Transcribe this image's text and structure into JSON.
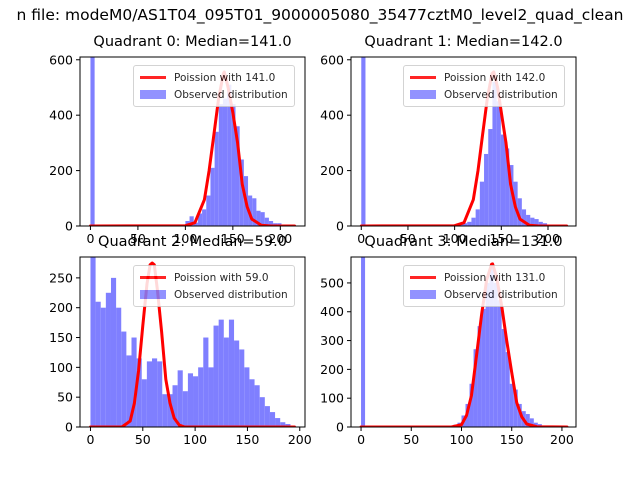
{
  "suptitle": "n file: modeM0/AS1T04_095T01_9000005080_35477cztM0_level2_quad_clean",
  "legend": {
    "poisson_prefix": "Poission with",
    "observed_label": "Observed distribution"
  },
  "colors": {
    "poisson": "#ff0000",
    "hist": "#7f7fff",
    "axis": "#000000"
  },
  "chart_data": [
    {
      "type": "bar",
      "title": "Quadrant 0: Median=141.0",
      "poisson_label": "Poission with 141.0",
      "poisson_mean": 141.0,
      "xlim": [
        -11,
        226
      ],
      "ylim": [
        0,
        610
      ],
      "xticks": [
        0,
        50,
        100,
        150,
        200
      ],
      "yticks": [
        0,
        200,
        400,
        600
      ],
      "bin_width": 4.4,
      "bins": [
        [
          0,
          610
        ],
        [
          100,
          18
        ],
        [
          104.4,
          35
        ],
        [
          108.8,
          12
        ],
        [
          113.2,
          45
        ],
        [
          117.6,
          60
        ],
        [
          122,
          110
        ],
        [
          126.4,
          210
        ],
        [
          130.8,
          340
        ],
        [
          135.2,
          440
        ],
        [
          139.6,
          460
        ],
        [
          144,
          510
        ],
        [
          148.4,
          440
        ],
        [
          152.8,
          360
        ],
        [
          157.2,
          240
        ],
        [
          161.6,
          180
        ],
        [
          166,
          110
        ],
        [
          170.4,
          100
        ],
        [
          174.8,
          55
        ],
        [
          179.2,
          50
        ],
        [
          183.6,
          30
        ],
        [
          188,
          18
        ],
        [
          192.4,
          10
        ],
        [
          196.8,
          10
        ],
        [
          201.2,
          5
        ],
        [
          205.6,
          3
        ]
      ],
      "poisson_points": [
        [
          0,
          0
        ],
        [
          100,
          1
        ],
        [
          110,
          12
        ],
        [
          120,
          95
        ],
        [
          125,
          200
        ],
        [
          130,
          330
        ],
        [
          135,
          460
        ],
        [
          140,
          550
        ],
        [
          141,
          556
        ],
        [
          145,
          500
        ],
        [
          150,
          410
        ],
        [
          155,
          300
        ],
        [
          160,
          150
        ],
        [
          165,
          70
        ],
        [
          170,
          25
        ],
        [
          180,
          3
        ],
        [
          190,
          0
        ],
        [
          215,
          0
        ]
      ]
    },
    {
      "type": "bar",
      "title": "Quadrant 1: Median=142.0",
      "poisson_label": "Poission with 142.0",
      "poisson_mean": 142.0,
      "xlim": [
        -11,
        230
      ],
      "ylim": [
        0,
        610
      ],
      "xticks": [
        0,
        50,
        100,
        150,
        200
      ],
      "yticks": [
        0,
        200,
        400,
        600
      ],
      "bin_width": 4.5,
      "bins": [
        [
          0,
          610
        ],
        [
          100,
          5
        ],
        [
          104.5,
          8
        ],
        [
          109,
          10
        ],
        [
          113.5,
          15
        ],
        [
          118,
          30
        ],
        [
          122.5,
          60
        ],
        [
          127,
          160
        ],
        [
          131.5,
          260
        ],
        [
          136,
          350
        ],
        [
          140.5,
          520
        ],
        [
          145,
          450
        ],
        [
          149.5,
          330
        ],
        [
          154,
          280
        ],
        [
          158.5,
          220
        ],
        [
          163,
          160
        ],
        [
          167.5,
          100
        ],
        [
          172,
          60
        ],
        [
          176.5,
          40
        ],
        [
          181,
          30
        ],
        [
          185.5,
          25
        ],
        [
          190,
          15
        ],
        [
          194.5,
          10
        ],
        [
          199,
          5
        ],
        [
          203.5,
          3
        ]
      ],
      "poisson_points": [
        [
          0,
          0
        ],
        [
          100,
          1
        ],
        [
          110,
          12
        ],
        [
          120,
          95
        ],
        [
          125,
          200
        ],
        [
          130,
          330
        ],
        [
          135,
          460
        ],
        [
          140,
          550
        ],
        [
          142,
          556
        ],
        [
          146,
          500
        ],
        [
          150,
          410
        ],
        [
          155,
          300
        ],
        [
          160,
          150
        ],
        [
          165,
          70
        ],
        [
          170,
          25
        ],
        [
          180,
          3
        ],
        [
          190,
          0
        ],
        [
          220,
          0
        ]
      ]
    },
    {
      "type": "bar",
      "title": "Quadrant 2: Median=59.0",
      "poisson_label": "Poission with 59.0",
      "poisson_mean": 59.0,
      "xlim": [
        -10,
        205
      ],
      "ylim": [
        0,
        285
      ],
      "xticks": [
        0,
        50,
        100,
        150,
        200
      ],
      "yticks": [
        0,
        50,
        100,
        150,
        200,
        250
      ],
      "bin_width": 4.9,
      "bins": [
        [
          0,
          285
        ],
        [
          4.9,
          210
        ],
        [
          9.8,
          200
        ],
        [
          14.7,
          225
        ],
        [
          19.6,
          250
        ],
        [
          24.5,
          200
        ],
        [
          29.4,
          160
        ],
        [
          34.3,
          120
        ],
        [
          39.2,
          150
        ],
        [
          44.1,
          115
        ],
        [
          49,
          80
        ],
        [
          53.9,
          110
        ],
        [
          58.8,
          115
        ],
        [
          63.7,
          110
        ],
        [
          68.6,
          55
        ],
        [
          73.5,
          55
        ],
        [
          78.4,
          70
        ],
        [
          83.3,
          95
        ],
        [
          88.2,
          60
        ],
        [
          93.1,
          90
        ],
        [
          98,
          85
        ],
        [
          102.9,
          100
        ],
        [
          107.8,
          150
        ],
        [
          112.7,
          100
        ],
        [
          117.6,
          170
        ],
        [
          122.5,
          180
        ],
        [
          127.4,
          150
        ],
        [
          132.3,
          180
        ],
        [
          137.2,
          145
        ],
        [
          142.1,
          130
        ],
        [
          147,
          100
        ],
        [
          151.9,
          80
        ],
        [
          156.8,
          70
        ],
        [
          161.7,
          50
        ],
        [
          166.6,
          35
        ],
        [
          171.5,
          25
        ],
        [
          176.4,
          15
        ],
        [
          181.3,
          8
        ],
        [
          186.2,
          5
        ],
        [
          191.1,
          2
        ]
      ],
      "poisson_points": [
        [
          0,
          0
        ],
        [
          30,
          0
        ],
        [
          38,
          10
        ],
        [
          42,
          40
        ],
        [
          46,
          95
        ],
        [
          50,
          170
        ],
        [
          54,
          240
        ],
        [
          57,
          272
        ],
        [
          59,
          275
        ],
        [
          61,
          272
        ],
        [
          64,
          230
        ],
        [
          68,
          160
        ],
        [
          72,
          80
        ],
        [
          76,
          40
        ],
        [
          80,
          15
        ],
        [
          85,
          3
        ],
        [
          90,
          0
        ],
        [
          195,
          0
        ]
      ]
    },
    {
      "type": "bar",
      "title": "Quadrant 3: Median=131.0",
      "poisson_label": "Poission with 131.0",
      "poisson_mean": 131.0,
      "xlim": [
        -10,
        214
      ],
      "ylim": [
        0,
        590
      ],
      "xticks": [
        0,
        50,
        100,
        150,
        200
      ],
      "yticks": [
        0,
        100,
        200,
        300,
        400,
        500
      ],
      "bin_width": 4.0,
      "bins": [
        [
          0,
          590
        ],
        [
          84,
          3
        ],
        [
          88,
          5
        ],
        [
          92,
          8
        ],
        [
          96,
          15
        ],
        [
          100,
          40
        ],
        [
          104,
          80
        ],
        [
          108,
          150
        ],
        [
          112,
          270
        ],
        [
          116,
          350
        ],
        [
          120,
          410
        ],
        [
          124,
          500
        ],
        [
          128,
          560
        ],
        [
          132,
          500
        ],
        [
          136,
          440
        ],
        [
          140,
          340
        ],
        [
          144,
          260
        ],
        [
          148,
          150
        ],
        [
          152,
          130
        ],
        [
          156,
          80
        ],
        [
          160,
          55
        ],
        [
          164,
          45
        ],
        [
          168,
          30
        ],
        [
          172,
          15
        ],
        [
          176,
          10
        ],
        [
          180,
          5
        ],
        [
          184,
          3
        ]
      ],
      "poisson_points": [
        [
          0,
          0
        ],
        [
          90,
          0
        ],
        [
          100,
          8
        ],
        [
          105,
          40
        ],
        [
          110,
          110
        ],
        [
          115,
          250
        ],
        [
          120,
          390
        ],
        [
          125,
          510
        ],
        [
          130,
          565
        ],
        [
          131,
          566
        ],
        [
          135,
          520
        ],
        [
          140,
          420
        ],
        [
          145,
          300
        ],
        [
          150,
          190
        ],
        [
          155,
          85
        ],
        [
          160,
          35
        ],
        [
          165,
          10
        ],
        [
          175,
          1
        ],
        [
          205,
          0
        ]
      ]
    }
  ]
}
